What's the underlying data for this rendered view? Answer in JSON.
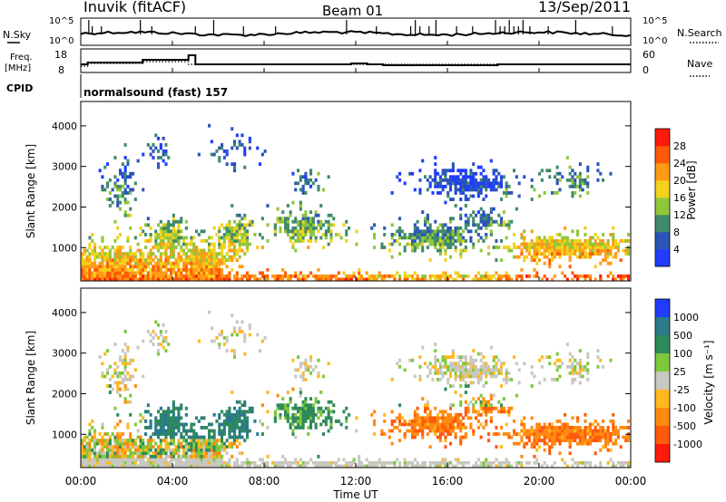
{
  "header": {
    "station": "Inuvik (fitACF)",
    "beam": "Beam 01",
    "date": "13/Sep/2011"
  },
  "strip": {
    "nsky_label": "N.Sky",
    "nsky_ticks": [
      "10^5",
      "10^0"
    ],
    "nsearch_label": "N.Search",
    "nsearch_ticks": [
      "10^5",
      "10^0"
    ],
    "freq_label_1": "Freq.",
    "freq_label_2": "[MHz]",
    "freq_ticks": [
      "18",
      "8"
    ],
    "nave_label": "Nave",
    "nave_ticks": [
      "60",
      "0"
    ],
    "cpid_label": "CPID",
    "cpid_value": "normalsound (fast) 157"
  },
  "chart_data": [
    {
      "type": "heatmap",
      "name": "power",
      "ylabel": "Slant Range [km]",
      "yticks": [
        "1000",
        "2000",
        "3000",
        "4000"
      ],
      "ylim": [
        180,
        4600
      ],
      "colorbar_label": "Power [dB]",
      "colorbar_ticks": [
        "4",
        "8",
        "12",
        "16",
        "20",
        "24",
        "28"
      ],
      "colors": [
        "#1f3cff",
        "#2c55b8",
        "#3f8a6a",
        "#8fc63a",
        "#f2d21c",
        "#ff9a16",
        "#ff5a08",
        "#ff1a0a"
      ]
    },
    {
      "type": "heatmap",
      "name": "velocity",
      "ylabel": "Slant Range [km]",
      "yticks": [
        "1000",
        "2000",
        "3000",
        "4000"
      ],
      "ylim": [
        180,
        4600
      ],
      "colorbar_label": "Velocity [m s⁻¹]",
      "colorbar_ticks": [
        "1000",
        "500",
        "100",
        "25",
        "-25",
        "-100",
        "-500",
        "-1000"
      ],
      "colors": [
        "#1f3cff",
        "#2a7a8a",
        "#2f8a5a",
        "#7ec83c",
        "#c8c8c0",
        "#ffb81e",
        "#ff8a10",
        "#ff5a0a",
        "#ff1a0a"
      ]
    }
  ],
  "time_axis": {
    "label": "Time UT",
    "ticks": [
      "00:00",
      "04:00",
      "08:00",
      "12:00",
      "16:00",
      "20:00",
      "00:00"
    ]
  }
}
